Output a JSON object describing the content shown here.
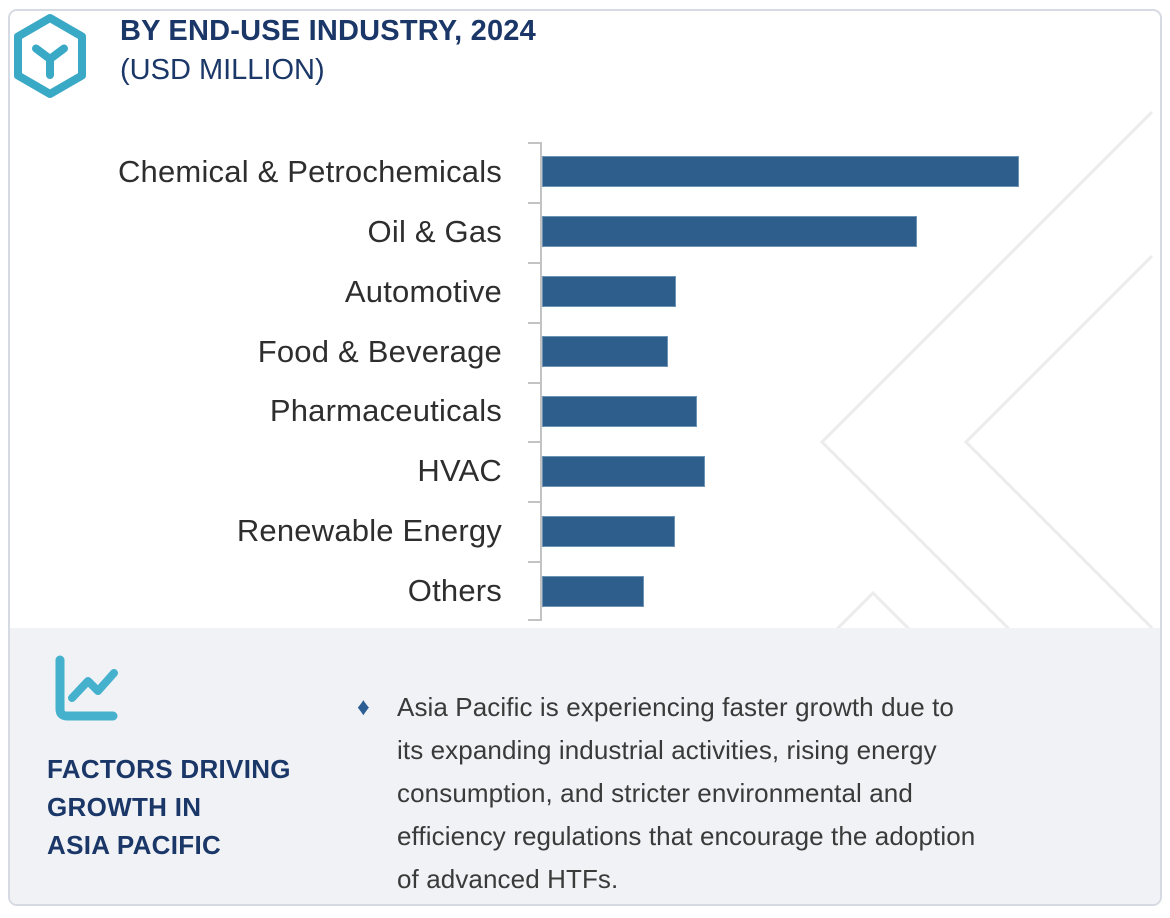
{
  "header": {
    "title": "BY END-USE INDUSTRY, 2024",
    "subtitle": "(USD MILLION)",
    "logo_icon": "hexagon-y-logo-icon"
  },
  "chart_data": {
    "type": "bar",
    "orientation": "horizontal",
    "title": "BY END-USE INDUSTRY, 2024 (USD MILLION)",
    "categories": [
      "Chemical & Petrochemicals",
      "Oil & Gas",
      "Automotive",
      "Food & Beverage",
      "Pharmaceuticals",
      "HVAC",
      "Renewable Energy",
      "Others"
    ],
    "values": [
      100,
      78.6,
      28.1,
      26.4,
      32.5,
      34.2,
      27.9,
      21.4
    ],
    "value_note": "Relative bar lengths as percent of the longest bar; no numeric axis tick labels are shown in the figure",
    "xlabel": "",
    "ylabel": "",
    "xlim": [
      0,
      100
    ],
    "grid": false,
    "legend": false,
    "bar_color": "#2e5e8b",
    "axis_color": "#c3c3c3"
  },
  "insight": {
    "icon": "line-chart-icon",
    "heading_lines": [
      "FACTORS DRIVING",
      "GROWTH IN",
      "ASIA PACIFIC"
    ],
    "bullet_marker": "♦",
    "bullet_lines": [
      "Asia Pacific is experiencing faster growth due to",
      "its expanding industrial activities, rising energy",
      "consumption, and stricter environmental and",
      "efficiency regulations that encourage the adoption",
      "of advanced HTFs."
    ]
  },
  "colors": {
    "accent_teal": "#3aa9c6",
    "navy": "#1a3768",
    "bar_blue": "#2e5e8b",
    "panel_bg": "#f0f2f6",
    "card_border": "#d6dae2",
    "watermark": "#ececec",
    "text_dark": "#2e2e2e"
  }
}
